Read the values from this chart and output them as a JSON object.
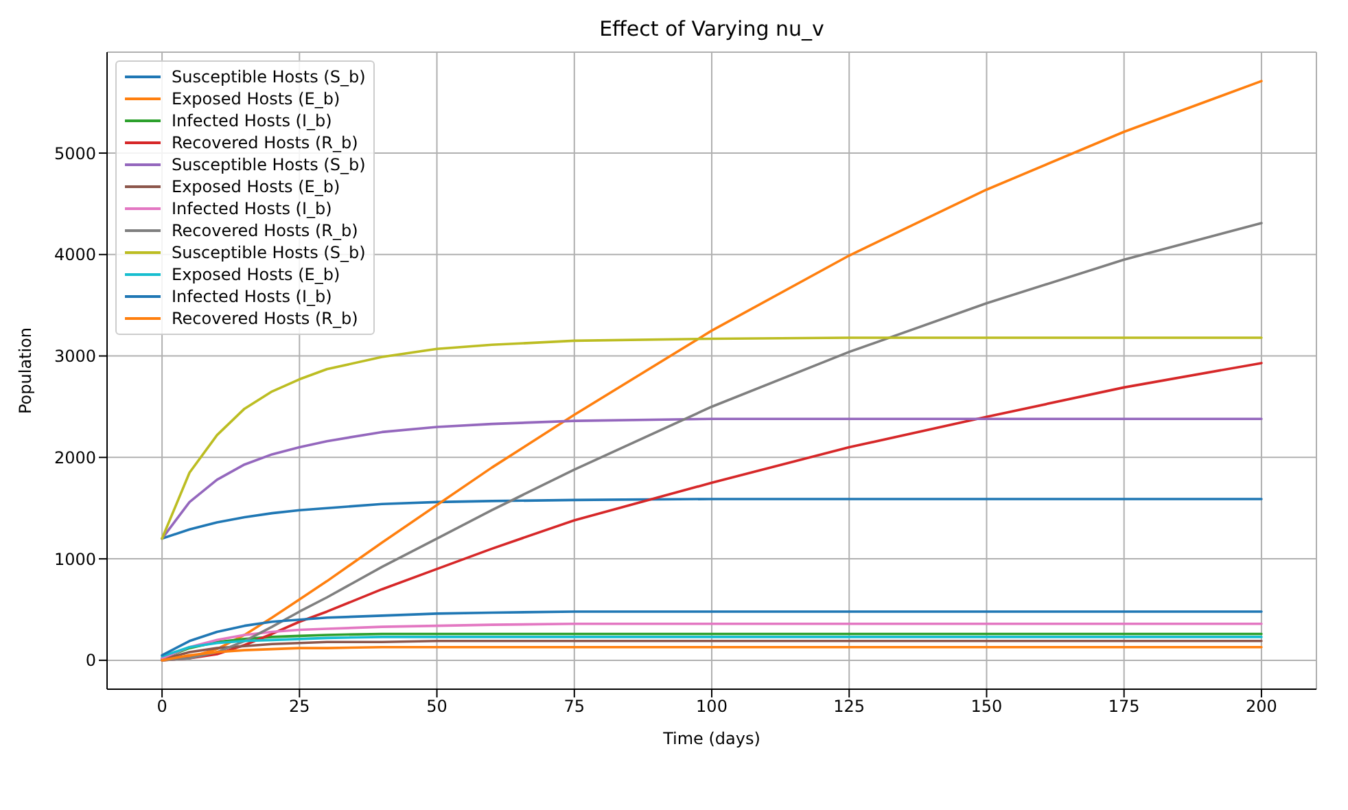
{
  "chart_data": {
    "type": "line",
    "title": "Effect of Varying nu_v",
    "xlabel": "Time (days)",
    "ylabel": "Population",
    "x": [
      0,
      5,
      10,
      15,
      20,
      25,
      30,
      40,
      50,
      60,
      75,
      100,
      125,
      150,
      175,
      200
    ],
    "xlim": [
      -10,
      210
    ],
    "xticks": [
      0,
      25,
      50,
      75,
      100,
      125,
      150,
      175,
      200
    ],
    "ylim": [
      -285,
      5995
    ],
    "yticks": [
      0,
      1000,
      2000,
      3000,
      4000,
      5000
    ],
    "grid": true,
    "legend": "top left",
    "series": [
      {
        "name": "Susceptible Hosts (S_b)",
        "color": "#1f77b4",
        "values": [
          1200,
          1290,
          1360,
          1410,
          1450,
          1480,
          1500,
          1540,
          1560,
          1570,
          1580,
          1590,
          1590,
          1590,
          1590,
          1590
        ]
      },
      {
        "name": "Exposed Hosts (E_b)",
        "color": "#ff7f0e",
        "values": [
          0,
          30,
          110,
          250,
          420,
          600,
          780,
          1160,
          1530,
          1900,
          2420,
          3250,
          3990,
          4640,
          5210,
          5710
        ]
      },
      {
        "name": "Infected Hosts (I_b)",
        "color": "#2ca02c",
        "values": [
          20,
          120,
          180,
          210,
          230,
          240,
          250,
          260,
          260,
          260,
          260,
          260,
          260,
          260,
          260,
          260
        ]
      },
      {
        "name": "Recovered Hosts (R_b)",
        "color": "#d62728",
        "values": [
          0,
          20,
          60,
          150,
          260,
          380,
          480,
          700,
          900,
          1100,
          1380,
          1750,
          2100,
          2400,
          2690,
          2930
        ]
      },
      {
        "name": "Susceptible Hosts (S_b)",
        "color": "#9467bd",
        "values": [
          1200,
          1560,
          1780,
          1930,
          2030,
          2100,
          2160,
          2250,
          2300,
          2330,
          2360,
          2380,
          2380,
          2380,
          2380,
          2380
        ]
      },
      {
        "name": "Exposed Hosts (E_b)",
        "color": "#8c564b",
        "values": [
          10,
          80,
          120,
          140,
          160,
          170,
          180,
          180,
          190,
          190,
          190,
          190,
          190,
          190,
          190,
          190
        ]
      },
      {
        "name": "Infected Hosts (I_b)",
        "color": "#e377c2",
        "values": [
          20,
          130,
          200,
          250,
          280,
          300,
          310,
          330,
          340,
          350,
          360,
          360,
          360,
          360,
          360,
          360
        ]
      },
      {
        "name": "Recovered Hosts (R_b)",
        "color": "#7f7f7f",
        "values": [
          0,
          20,
          80,
          190,
          330,
          480,
          620,
          920,
          1200,
          1480,
          1880,
          2500,
          3040,
          3520,
          3950,
          4310
        ]
      },
      {
        "name": "Susceptible Hosts (S_b)",
        "color": "#bcbd22",
        "values": [
          1200,
          1850,
          2220,
          2480,
          2650,
          2770,
          2870,
          2990,
          3070,
          3110,
          3150,
          3170,
          3180,
          3180,
          3180,
          3180
        ]
      },
      {
        "name": "Exposed Hosts (E_b)",
        "color": "#17becf",
        "values": [
          40,
          130,
          170,
          190,
          200,
          210,
          220,
          230,
          230,
          230,
          230,
          230,
          230,
          230,
          230,
          230
        ]
      },
      {
        "name": "Infected Hosts (I_b)",
        "color": "#1f77b4",
        "values": [
          50,
          190,
          280,
          340,
          380,
          400,
          420,
          440,
          460,
          470,
          480,
          480,
          480,
          480,
          480,
          480
        ]
      },
      {
        "name": "Recovered Hosts (R_b)",
        "color": "#ff7f0e",
        "values": [
          0,
          50,
          80,
          100,
          110,
          120,
          120,
          130,
          130,
          130,
          130,
          130,
          130,
          130,
          130,
          130
        ]
      }
    ]
  }
}
